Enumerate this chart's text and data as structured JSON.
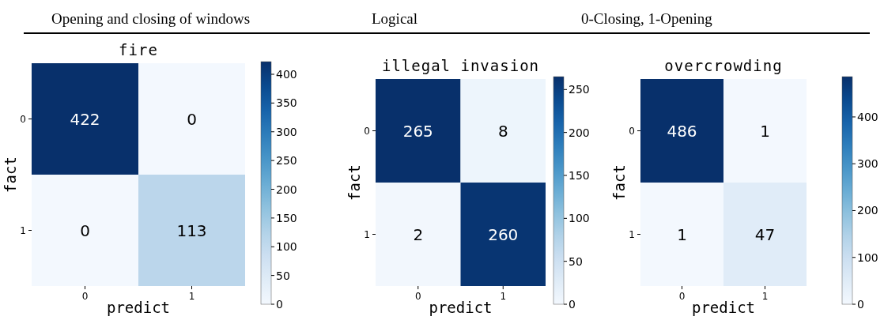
{
  "chart_data": [
    {
      "type": "other",
      "annotations": [
        "Opening and closing of windows",
        "Logical",
        "0-Closing, 1-Opening"
      ]
    },
    {
      "type": "heatmap",
      "title": "fire",
      "xlabel": "predict",
      "ylabel": "fact",
      "categories": [
        "0",
        "1"
      ],
      "y_categories": [
        "0",
        "1"
      ],
      "cells": [
        [
          422,
          0
        ],
        [
          0,
          113
        ]
      ],
      "data_labels": true,
      "clim": [
        0,
        422
      ],
      "cticks": [
        0,
        50,
        100,
        150,
        200,
        250,
        300,
        350,
        400
      ]
    },
    {
      "type": "heatmap",
      "title": "illegal invasion",
      "xlabel": "predict",
      "ylabel": "fact",
      "categories": [
        "0",
        "1"
      ],
      "y_categories": [
        "0",
        "1"
      ],
      "cells": [
        [
          265,
          8
        ],
        [
          2,
          260
        ]
      ],
      "data_labels": true,
      "clim": [
        0,
        265
      ],
      "cticks": [
        0,
        50,
        100,
        150,
        200,
        250
      ]
    },
    {
      "type": "heatmap",
      "title": "overcrowding",
      "xlabel": "predict",
      "ylabel": "fact",
      "categories": [
        "0",
        "1"
      ],
      "y_categories": [
        "0",
        "1"
      ],
      "cells": [
        [
          486,
          1
        ],
        [
          1,
          47
        ]
      ],
      "data_labels": true,
      "clim": [
        0,
        486
      ],
      "cticks": [
        0,
        100,
        200,
        300,
        400
      ]
    }
  ]
}
